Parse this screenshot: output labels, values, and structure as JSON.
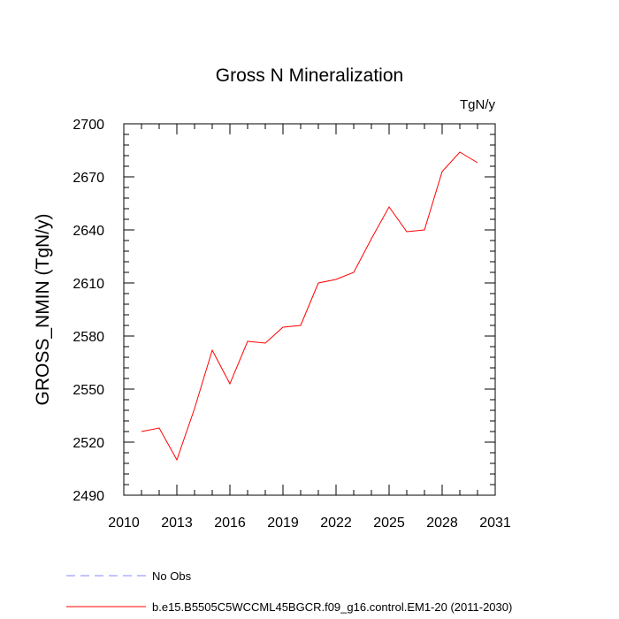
{
  "chart_data": {
    "type": "line",
    "title": "Gross N Mineralization",
    "units": "TgN/y",
    "xlabel": "",
    "ylabel": "GROSS_NMIN  (TgN/y)",
    "xlim": [
      2010,
      2031
    ],
    "ylim": [
      2490,
      2700
    ],
    "xticks": [
      2010,
      2013,
      2016,
      2019,
      2022,
      2025,
      2028,
      2031
    ],
    "yticks": [
      2490,
      2520,
      2550,
      2580,
      2610,
      2640,
      2670,
      2700
    ],
    "grid": false,
    "series": [
      {
        "name": "b.e15.B5505C5WCCML45BGCR.f09_g16.control.EM1-20 (2011-2030)",
        "color": "#ff0000",
        "style": "solid",
        "x": [
          2011,
          2012,
          2013,
          2014,
          2015,
          2016,
          2017,
          2018,
          2019,
          2020,
          2021,
          2022,
          2023,
          2024,
          2025,
          2026,
          2027,
          2028,
          2029,
          2030
        ],
        "y": [
          2526,
          2528,
          2510,
          2539,
          2572,
          2553,
          2577,
          2576,
          2585,
          2586,
          2610,
          2612,
          2616,
          2635,
          2653,
          2639,
          2640,
          2673,
          2684,
          2678
        ]
      }
    ],
    "legend": {
      "placement": "bottom",
      "entries": [
        {
          "label": "No Obs",
          "color": "#8a8aff",
          "style": "dashed"
        },
        {
          "label": "b.e15.B5505C5WCCML45BGCR.f09_g16.control.EM1-20 (2011-2030)",
          "color": "#ff0000",
          "style": "solid"
        }
      ]
    }
  }
}
